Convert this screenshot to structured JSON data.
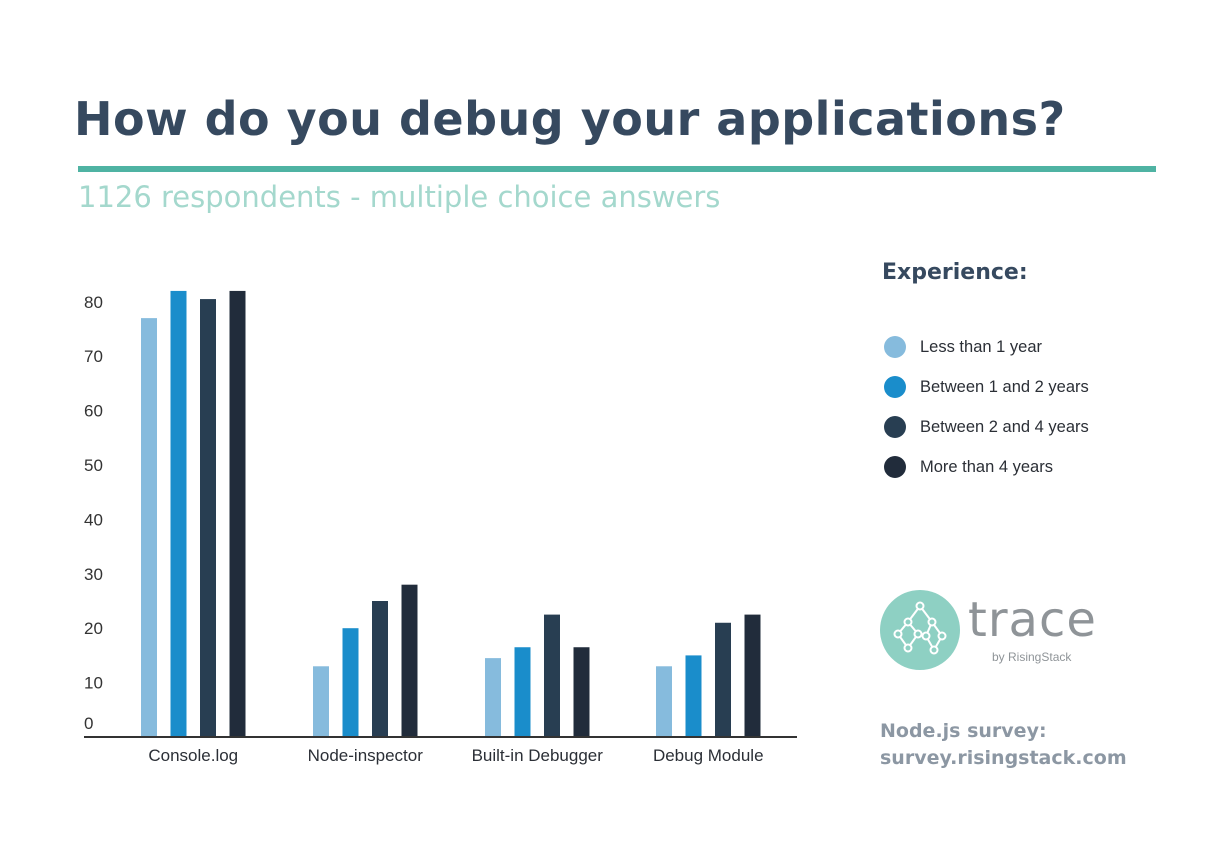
{
  "header": {
    "title": "How do you debug your applications?",
    "subtitle": "1126 respondents - multiple choice answers"
  },
  "legend": {
    "title": "Experience:",
    "items": [
      {
        "label": "Less than 1 year",
        "color": "#86bbdd"
      },
      {
        "label": "Between 1 and 2 years",
        "color": "#1a8dcb"
      },
      {
        "label": "Between 2 and 4 years",
        "color": "#283e52"
      },
      {
        "label": "More than 4 years",
        "color": "#212c3b"
      }
    ]
  },
  "logo": {
    "word": "trace",
    "byline": "by RisingStack"
  },
  "footer": {
    "line1": "Node.js survey:",
    "line2": "survey.risingstack.com"
  },
  "colors": {
    "title": "#36495f",
    "accent": "#4fb3a3",
    "subtitle": "#a4d8cd",
    "axis": "#333333"
  },
  "chart_data": {
    "type": "bar",
    "categories": [
      "Console.log",
      "Node-inspector",
      "Built-in Debugger",
      "Debug Module"
    ],
    "series": [
      {
        "name": "Less than 1 year",
        "values": [
          77,
          13,
          14.5,
          13
        ],
        "color": "#86bbdd"
      },
      {
        "name": "Between 1 and 2 years",
        "values": [
          82,
          20,
          16.5,
          15
        ],
        "color": "#1a8dcb"
      },
      {
        "name": "Between 2 and 4 years",
        "values": [
          80.5,
          25,
          22.5,
          21
        ],
        "color": "#283e52"
      },
      {
        "name": "More than 4 years",
        "values": [
          82,
          28,
          16.5,
          22.5
        ],
        "color": "#212c3b"
      }
    ],
    "yticks": [
      0,
      10,
      20,
      30,
      40,
      50,
      60,
      70,
      80
    ],
    "ylim": [
      0,
      85
    ],
    "grid": false,
    "legend_position": "right"
  }
}
